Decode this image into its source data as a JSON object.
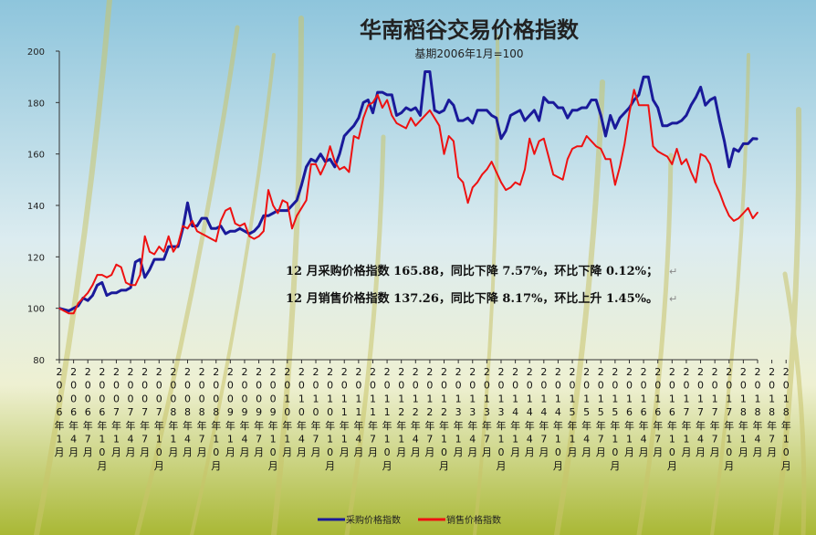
{
  "chart_data": {
    "type": "line",
    "title": "华南稻谷交易价格指数",
    "subtitle": "基期2006年1月=100",
    "ylim": [
      80,
      200
    ],
    "yticks": [
      80,
      100,
      120,
      140,
      160,
      180,
      200
    ],
    "x_labels": [
      "2006年1月",
      "2006年4月",
      "2006年7月",
      "2006年10月",
      "2007年1月",
      "2007年4月",
      "2007年7月",
      "2007年10月",
      "2008年1月",
      "2008年4月",
      "2008年7月",
      "2008年10月",
      "2009年1月",
      "2009年4月",
      "2009年7月",
      "2009年10月",
      "2010年1月",
      "2010年4月",
      "2010年7月",
      "2010年10月",
      "2011年1月",
      "2011年4月",
      "2011年7月",
      "2011年10月",
      "2012年1月",
      "2012年4月",
      "2012年7月",
      "2012年10月",
      "2013年1月",
      "2013年4月",
      "2013年7月",
      "2013年10月",
      "2014年1月",
      "2014年4月",
      "2014年7月",
      "2014年10月",
      "2015年1月",
      "2015年4月",
      "2015年7月",
      "2015年10月",
      "2016年1月",
      "2016年4月",
      "2016年7月",
      "2016年10月",
      "2017年1月",
      "2017年4月",
      "2017年7月",
      "2017年10月",
      "2018年1月",
      "2018年4月",
      "2018年7月",
      "2018年10月"
    ],
    "series": [
      {
        "name": "采购价格指数",
        "color": "#1a1a9a",
        "values": [
          100,
          99.5,
          99,
          100,
          101,
          104,
          103,
          105,
          109,
          110,
          105,
          106,
          106,
          107,
          107,
          108,
          118,
          119,
          112,
          115,
          119,
          119,
          119,
          124,
          124,
          124,
          131,
          141,
          132,
          132,
          135,
          135,
          131,
          131,
          132,
          129,
          130,
          130,
          131,
          130,
          129,
          130,
          132,
          136,
          136,
          137,
          138,
          138,
          138,
          140,
          142,
          148,
          155,
          158,
          157,
          160,
          157,
          158,
          155,
          160,
          167,
          169,
          171,
          174,
          180,
          181,
          176,
          184,
          184,
          183,
          183,
          175,
          176,
          178,
          177,
          178,
          175,
          192,
          192,
          177,
          176,
          177,
          181,
          179,
          173,
          173,
          174,
          172,
          177,
          177,
          177,
          175,
          174,
          166,
          169,
          175,
          176,
          177,
          173,
          175,
          177,
          173,
          182,
          180,
          180,
          178,
          178,
          174,
          177,
          177,
          178,
          178,
          181,
          181,
          175,
          167,
          175,
          170,
          174,
          176,
          178,
          181,
          183,
          190,
          190,
          181,
          178,
          171,
          171,
          172,
          172,
          173,
          175,
          179,
          182,
          186,
          179,
          181,
          182,
          173,
          165,
          155,
          162,
          161,
          164,
          164,
          166,
          165.88
        ]
      },
      {
        "name": "销售价格指数",
        "color": "#ee1111",
        "values": [
          100,
          99,
          98,
          98,
          102,
          104,
          106,
          109,
          113,
          113,
          112,
          113,
          117,
          116,
          110,
          109,
          109,
          113,
          128,
          122,
          121,
          124,
          122,
          128,
          122,
          125,
          132,
          131,
          134,
          130,
          129,
          128,
          127,
          126,
          134,
          138,
          139,
          133,
          132,
          133,
          128,
          127,
          128,
          130,
          146,
          140,
          137,
          142,
          141,
          131,
          136,
          139,
          142,
          156,
          156,
          152,
          156,
          163,
          157,
          154,
          155,
          153,
          167,
          166,
          174,
          179,
          180,
          183,
          178,
          181,
          175,
          172,
          171,
          170,
          174,
          171,
          173,
          175,
          177,
          174,
          171,
          160,
          167,
          165,
          151,
          149,
          141,
          147,
          149,
          152,
          154,
          157,
          153,
          149,
          146,
          147,
          149,
          148,
          154,
          166,
          160,
          165,
          166,
          159,
          152,
          151,
          150,
          158,
          162,
          163,
          163,
          167,
          165,
          163,
          162,
          158,
          158,
          148,
          155,
          164,
          176,
          185,
          179,
          179,
          179,
          163,
          161,
          160,
          159,
          156,
          162,
          156,
          158,
          153,
          149,
          160,
          159,
          156,
          149,
          145,
          140,
          136,
          134,
          135,
          137,
          139,
          135,
          137.26
        ]
      }
    ],
    "legend_position": "bottom-center",
    "annotations": [
      "12 月采购价格指数 165.88，同比下降 7.57%，环比下降 0.12%；",
      "12 月销售价格指数 137.26，同比下降 8.17%，环比上升 1.45%。"
    ],
    "paragraph_mark": "↵"
  },
  "colors": {
    "sky_top": "#8ec5dc",
    "sky_mid": "#dcecf0",
    "field_bottom": "#a9b835"
  }
}
